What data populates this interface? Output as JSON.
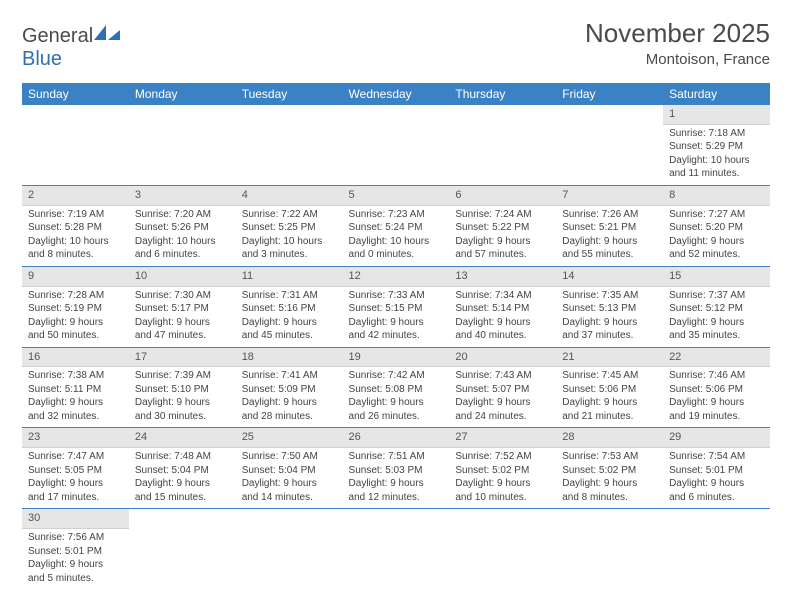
{
  "logo": {
    "text1": "General",
    "text2": "Blue"
  },
  "title": "November 2025",
  "location": "Montoison, France",
  "colors": {
    "header_bg": "#3b82c4",
    "header_text": "#ffffff",
    "daynum_bg": "#e6e6e6",
    "border": "#3b82c4",
    "text": "#444444",
    "logo_gray": "#4a4a4a",
    "logo_blue": "#2f6fb3"
  },
  "weekdays": [
    "Sunday",
    "Monday",
    "Tuesday",
    "Wednesday",
    "Thursday",
    "Friday",
    "Saturday"
  ],
  "weeks": [
    [
      null,
      null,
      null,
      null,
      null,
      null,
      {
        "n": "1",
        "sr": "Sunrise: 7:18 AM",
        "ss": "Sunset: 5:29 PM",
        "dl1": "Daylight: 10 hours",
        "dl2": "and 11 minutes."
      }
    ],
    [
      {
        "n": "2",
        "sr": "Sunrise: 7:19 AM",
        "ss": "Sunset: 5:28 PM",
        "dl1": "Daylight: 10 hours",
        "dl2": "and 8 minutes."
      },
      {
        "n": "3",
        "sr": "Sunrise: 7:20 AM",
        "ss": "Sunset: 5:26 PM",
        "dl1": "Daylight: 10 hours",
        "dl2": "and 6 minutes."
      },
      {
        "n": "4",
        "sr": "Sunrise: 7:22 AM",
        "ss": "Sunset: 5:25 PM",
        "dl1": "Daylight: 10 hours",
        "dl2": "and 3 minutes."
      },
      {
        "n": "5",
        "sr": "Sunrise: 7:23 AM",
        "ss": "Sunset: 5:24 PM",
        "dl1": "Daylight: 10 hours",
        "dl2": "and 0 minutes."
      },
      {
        "n": "6",
        "sr": "Sunrise: 7:24 AM",
        "ss": "Sunset: 5:22 PM",
        "dl1": "Daylight: 9 hours",
        "dl2": "and 57 minutes."
      },
      {
        "n": "7",
        "sr": "Sunrise: 7:26 AM",
        "ss": "Sunset: 5:21 PM",
        "dl1": "Daylight: 9 hours",
        "dl2": "and 55 minutes."
      },
      {
        "n": "8",
        "sr": "Sunrise: 7:27 AM",
        "ss": "Sunset: 5:20 PM",
        "dl1": "Daylight: 9 hours",
        "dl2": "and 52 minutes."
      }
    ],
    [
      {
        "n": "9",
        "sr": "Sunrise: 7:28 AM",
        "ss": "Sunset: 5:19 PM",
        "dl1": "Daylight: 9 hours",
        "dl2": "and 50 minutes."
      },
      {
        "n": "10",
        "sr": "Sunrise: 7:30 AM",
        "ss": "Sunset: 5:17 PM",
        "dl1": "Daylight: 9 hours",
        "dl2": "and 47 minutes."
      },
      {
        "n": "11",
        "sr": "Sunrise: 7:31 AM",
        "ss": "Sunset: 5:16 PM",
        "dl1": "Daylight: 9 hours",
        "dl2": "and 45 minutes."
      },
      {
        "n": "12",
        "sr": "Sunrise: 7:33 AM",
        "ss": "Sunset: 5:15 PM",
        "dl1": "Daylight: 9 hours",
        "dl2": "and 42 minutes."
      },
      {
        "n": "13",
        "sr": "Sunrise: 7:34 AM",
        "ss": "Sunset: 5:14 PM",
        "dl1": "Daylight: 9 hours",
        "dl2": "and 40 minutes."
      },
      {
        "n": "14",
        "sr": "Sunrise: 7:35 AM",
        "ss": "Sunset: 5:13 PM",
        "dl1": "Daylight: 9 hours",
        "dl2": "and 37 minutes."
      },
      {
        "n": "15",
        "sr": "Sunrise: 7:37 AM",
        "ss": "Sunset: 5:12 PM",
        "dl1": "Daylight: 9 hours",
        "dl2": "and 35 minutes."
      }
    ],
    [
      {
        "n": "16",
        "sr": "Sunrise: 7:38 AM",
        "ss": "Sunset: 5:11 PM",
        "dl1": "Daylight: 9 hours",
        "dl2": "and 32 minutes."
      },
      {
        "n": "17",
        "sr": "Sunrise: 7:39 AM",
        "ss": "Sunset: 5:10 PM",
        "dl1": "Daylight: 9 hours",
        "dl2": "and 30 minutes."
      },
      {
        "n": "18",
        "sr": "Sunrise: 7:41 AM",
        "ss": "Sunset: 5:09 PM",
        "dl1": "Daylight: 9 hours",
        "dl2": "and 28 minutes."
      },
      {
        "n": "19",
        "sr": "Sunrise: 7:42 AM",
        "ss": "Sunset: 5:08 PM",
        "dl1": "Daylight: 9 hours",
        "dl2": "and 26 minutes."
      },
      {
        "n": "20",
        "sr": "Sunrise: 7:43 AM",
        "ss": "Sunset: 5:07 PM",
        "dl1": "Daylight: 9 hours",
        "dl2": "and 24 minutes."
      },
      {
        "n": "21",
        "sr": "Sunrise: 7:45 AM",
        "ss": "Sunset: 5:06 PM",
        "dl1": "Daylight: 9 hours",
        "dl2": "and 21 minutes."
      },
      {
        "n": "22",
        "sr": "Sunrise: 7:46 AM",
        "ss": "Sunset: 5:06 PM",
        "dl1": "Daylight: 9 hours",
        "dl2": "and 19 minutes."
      }
    ],
    [
      {
        "n": "23",
        "sr": "Sunrise: 7:47 AM",
        "ss": "Sunset: 5:05 PM",
        "dl1": "Daylight: 9 hours",
        "dl2": "and 17 minutes."
      },
      {
        "n": "24",
        "sr": "Sunrise: 7:48 AM",
        "ss": "Sunset: 5:04 PM",
        "dl1": "Daylight: 9 hours",
        "dl2": "and 15 minutes."
      },
      {
        "n": "25",
        "sr": "Sunrise: 7:50 AM",
        "ss": "Sunset: 5:04 PM",
        "dl1": "Daylight: 9 hours",
        "dl2": "and 14 minutes."
      },
      {
        "n": "26",
        "sr": "Sunrise: 7:51 AM",
        "ss": "Sunset: 5:03 PM",
        "dl1": "Daylight: 9 hours",
        "dl2": "and 12 minutes."
      },
      {
        "n": "27",
        "sr": "Sunrise: 7:52 AM",
        "ss": "Sunset: 5:02 PM",
        "dl1": "Daylight: 9 hours",
        "dl2": "and 10 minutes."
      },
      {
        "n": "28",
        "sr": "Sunrise: 7:53 AM",
        "ss": "Sunset: 5:02 PM",
        "dl1": "Daylight: 9 hours",
        "dl2": "and 8 minutes."
      },
      {
        "n": "29",
        "sr": "Sunrise: 7:54 AM",
        "ss": "Sunset: 5:01 PM",
        "dl1": "Daylight: 9 hours",
        "dl2": "and 6 minutes."
      }
    ],
    [
      {
        "n": "30",
        "sr": "Sunrise: 7:56 AM",
        "ss": "Sunset: 5:01 PM",
        "dl1": "Daylight: 9 hours",
        "dl2": "and 5 minutes."
      },
      null,
      null,
      null,
      null,
      null,
      null
    ]
  ]
}
